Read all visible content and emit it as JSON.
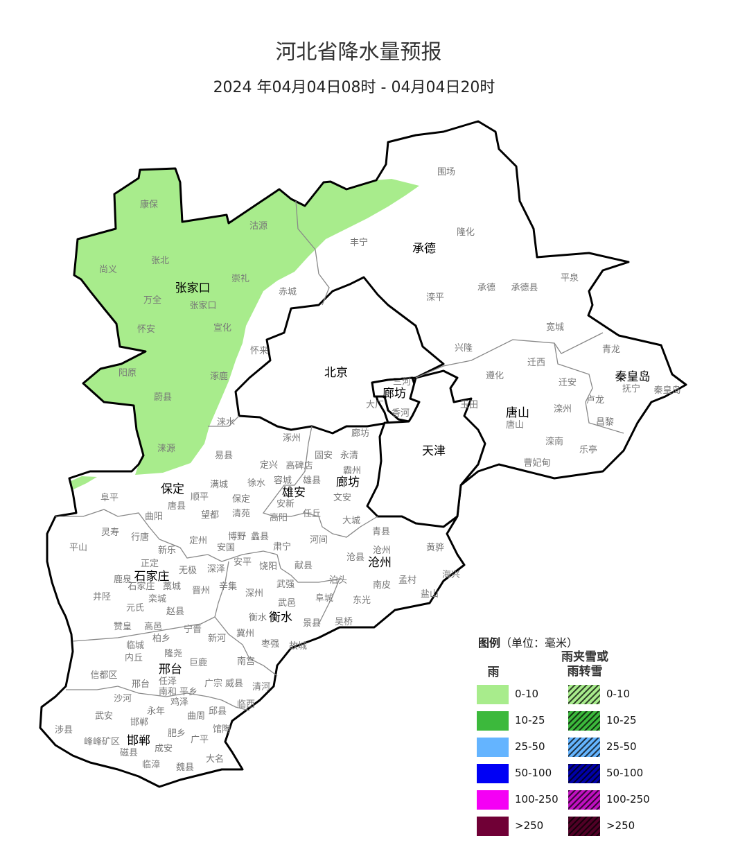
{
  "header": {
    "title": "河北省降水量预报",
    "subtitle": "2024 年04月04日08时 - 04月04日20时"
  },
  "map": {
    "rain_area_level": "0-10",
    "rain_area_color": "#a8ec8c",
    "boundary_color": "#000000",
    "cities": [
      "张家口",
      "承德",
      "北京",
      "廊坊",
      "秦皇岛",
      "唐山",
      "天津",
      "保定",
      "雄安",
      "廊坊",
      "沧州",
      "石家庄",
      "衡水",
      "邢台",
      "邯郸"
    ],
    "counties": [
      "康保",
      "沽源",
      "尚义",
      "张北",
      "崇礼",
      "万全",
      "张家口",
      "怀安",
      "宣化",
      "赤城",
      "怀来",
      "阳原",
      "涿鹿",
      "蔚县",
      "涞水",
      "涞源",
      "围场",
      "丰宁",
      "隆化",
      "滦平",
      "承德",
      "承德县",
      "平泉",
      "宽城",
      "兴隆",
      "迁西",
      "遵化",
      "迁安",
      "青龙",
      "抚宁",
      "秦皇岛",
      "卢龙",
      "玉田",
      "滦州",
      "唐山",
      "昌黎",
      "滦南",
      "乐亭",
      "曹妃甸",
      "三河",
      "大厂",
      "香河",
      "涿州",
      "廊坊",
      "易县",
      "固安",
      "永清",
      "定兴",
      "高碑店",
      "霸州",
      "容城",
      "雄县",
      "满城",
      "徐水",
      "阜平",
      "顺平",
      "保定",
      "安新",
      "文安",
      "唐县",
      "曲阳",
      "望都",
      "清苑",
      "高阳",
      "任丘",
      "大城",
      "灵寿",
      "行唐",
      "博野",
      "蠡县",
      "定州",
      "安国",
      "肃宁",
      "河间",
      "青县",
      "沧州",
      "沧县",
      "黄骅",
      "平山",
      "新乐",
      "正定",
      "无极",
      "深泽",
      "安平",
      "饶阳",
      "献县",
      "海兴",
      "鹿泉",
      "石家庄",
      "藁城",
      "晋州",
      "辛集",
      "武强",
      "泊头",
      "南皮",
      "孟村",
      "井陉",
      "栾城",
      "深州",
      "武邑",
      "阜城",
      "东光",
      "盐山",
      "元氏",
      "赵县",
      "衡水",
      "景县",
      "吴桥",
      "赞皇",
      "高邑",
      "宁晋",
      "柏乡",
      "新河",
      "冀州",
      "临城",
      "隆尧",
      "枣强",
      "故城",
      "内丘",
      "巨鹿",
      "南宫",
      "信都区",
      "邢台",
      "任泽",
      "广宗",
      "威县",
      "清河",
      "南和",
      "平乡",
      "沙河",
      "鸡泽",
      "临西",
      "武安",
      "永年",
      "曲周",
      "邱县",
      "邯郸",
      "涉县",
      "馆陶",
      "肥乡",
      "广平",
      "峰峰矿区",
      "磁县",
      "成安",
      "大名",
      "临漳",
      "魏县"
    ]
  },
  "legend": {
    "title": "图例",
    "unit": "（单位：毫米）",
    "rain_header": "雨",
    "sleet_header_line1": "雨夹雪或",
    "sleet_header_line2": "雨转雪",
    "rain": [
      {
        "label": "0-10",
        "color": "#a8ec8c"
      },
      {
        "label": "10-25",
        "color": "#3cb93c"
      },
      {
        "label": "25-50",
        "color": "#64b4ff"
      },
      {
        "label": "50-100",
        "color": "#0000f5"
      },
      {
        "label": "100-250",
        "color": "#f500f5"
      },
      {
        "label": ">250",
        "color": "#700036"
      }
    ],
    "sleet": [
      {
        "label": "0-10",
        "color": "#a8ec8c"
      },
      {
        "label": "10-25",
        "color": "#3cb93c"
      },
      {
        "label": "25-50",
        "color": "#64b4ff"
      },
      {
        "label": "50-100",
        "color": "#0000a8"
      },
      {
        "label": "100-250",
        "color": "#c010c0"
      },
      {
        "label": ">250",
        "color": "#500026"
      }
    ]
  }
}
